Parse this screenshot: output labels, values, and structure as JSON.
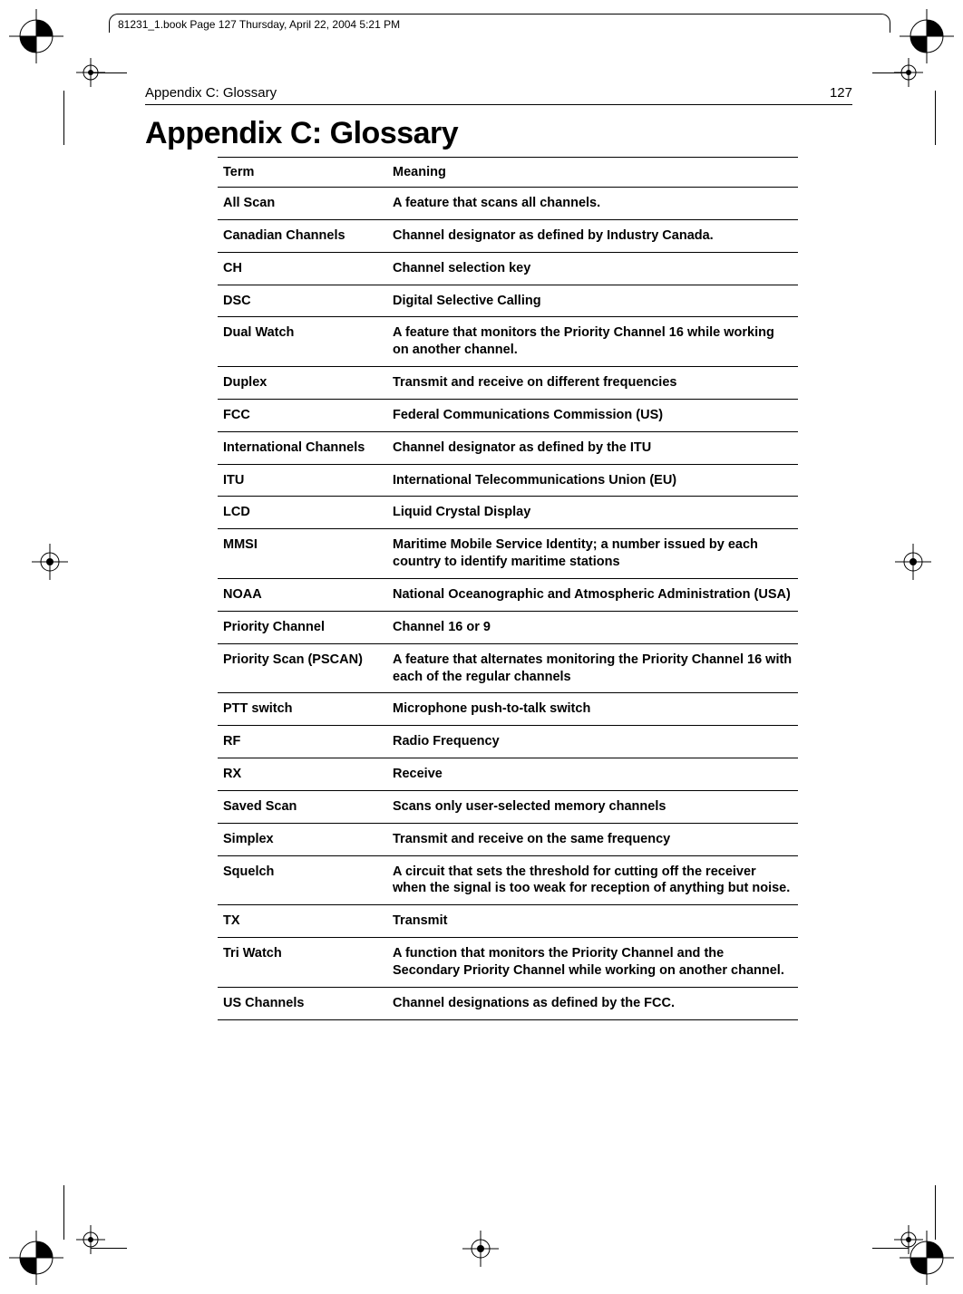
{
  "book_info": "81231_1.book  Page 127  Thursday, April 22, 2004  5:21 PM",
  "running_head_left": "Appendix C: Glossary",
  "running_head_right": "127",
  "heading": "Appendix C:     Glossary",
  "table": {
    "header_term": "Term",
    "header_meaning": "Meaning",
    "rows": [
      {
        "term": "All Scan",
        "meaning": "A feature that scans all channels."
      },
      {
        "term": "Canadian Channels",
        "meaning": "Channel designator as defined by Industry Canada."
      },
      {
        "term": "CH",
        "meaning": "Channel selection key"
      },
      {
        "term": "DSC",
        "meaning": "Digital Selective Calling"
      },
      {
        "term": "Dual Watch",
        "meaning": "A feature that monitors the Priority Channel 16 while working on another channel."
      },
      {
        "term": "Duplex",
        "meaning": "Transmit and receive on different frequencies"
      },
      {
        "term": "FCC",
        "meaning": "Federal Communications Commission (US)"
      },
      {
        "term": "International Channels",
        "meaning": "Channel designator as defined by the ITU"
      },
      {
        "term": "ITU",
        "meaning": " International Telecommunications Union (EU)"
      },
      {
        "term": "LCD",
        "meaning": "Liquid Crystal Display"
      },
      {
        "term": "MMSI",
        "meaning": "Maritime Mobile Service Identity; a number issued by each country to identify maritime stations"
      },
      {
        "term": "NOAA",
        "meaning": "National Oceanographic and Atmospheric Administration (USA)"
      },
      {
        "term": "Priority Channel",
        "meaning": "Channel 16 or 9"
      },
      {
        "term": "Priority Scan (PSCAN)",
        "meaning": "A feature that alternates monitoring the Priority Channel 16 with each of the regular channels"
      },
      {
        "term": "PTT switch",
        "meaning": "Microphone push-to-talk switch"
      },
      {
        "term": "RF",
        "meaning": " Radio Frequency"
      },
      {
        "term": "RX",
        "meaning": "Receive"
      },
      {
        "term": "Saved Scan",
        "meaning": "Scans only user-selected memory channels"
      },
      {
        "term": "Simplex",
        "meaning": "Transmit and receive on the same frequency"
      },
      {
        "term": "Squelch",
        "meaning": "A circuit that sets the threshold for cutting off the receiver when the signal is too weak for reception of anything but noise."
      },
      {
        "term": "TX",
        "meaning": "Transmit"
      },
      {
        "term": "Tri Watch",
        "meaning": "A function that monitors the Priority Channel and the Secondary Priority Channel while working on another channel."
      },
      {
        "term": "US Channels",
        "meaning": "Channel designations as defined by the FCC."
      }
    ]
  },
  "colors": {
    "text": "#000000",
    "background": "#ffffff",
    "rule": "#000000"
  }
}
